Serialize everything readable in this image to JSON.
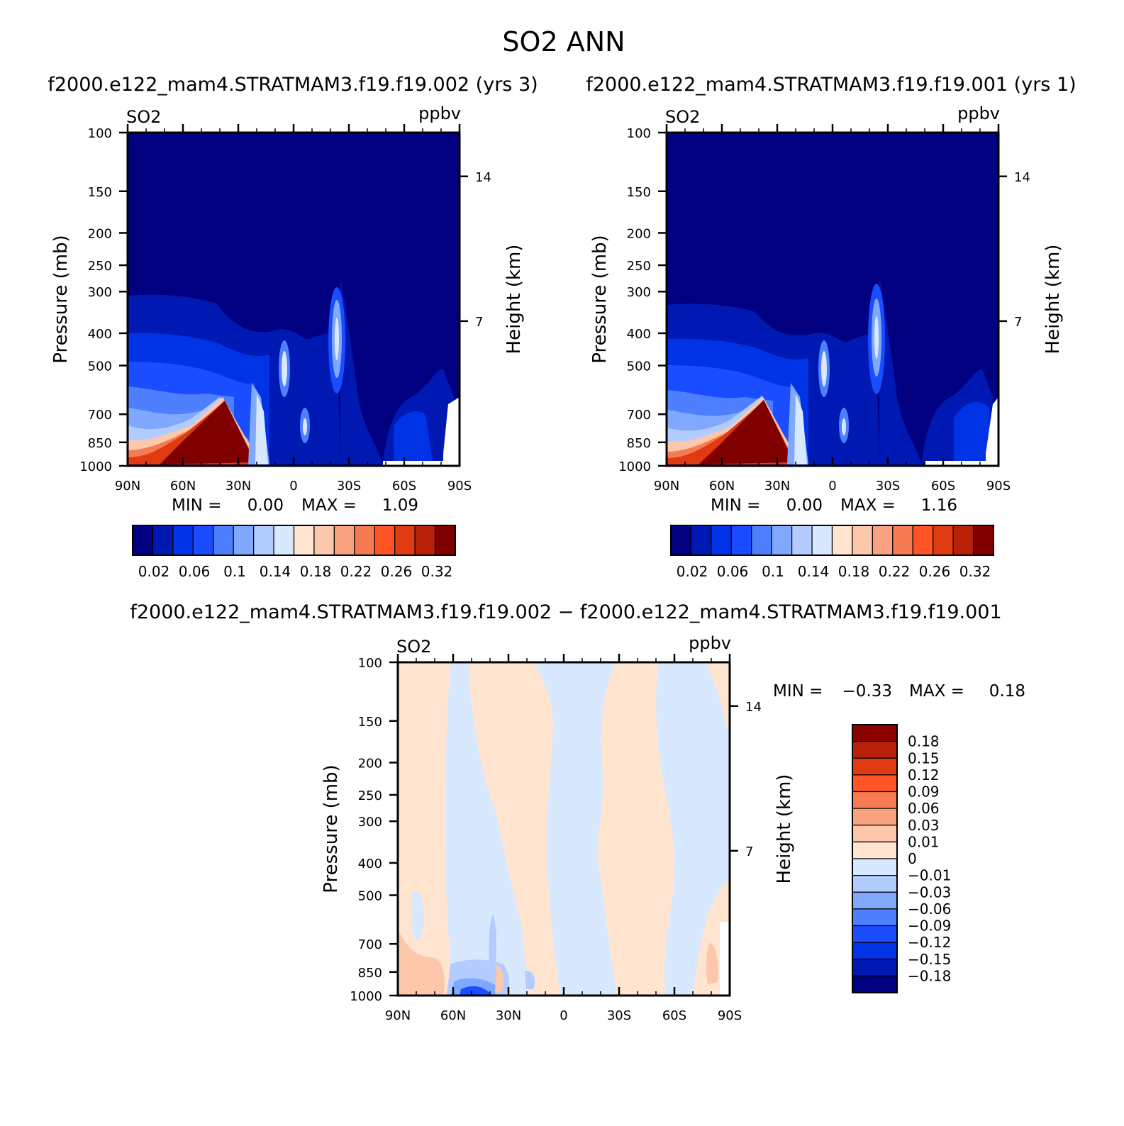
{
  "title": "SO2  ANN",
  "panels": [
    {
      "header": "f2000.e122_mam4.STRATMAM3.f19.f19.002  (yrs  3)",
      "var_label": "SO2",
      "unit_label": "ppbv",
      "ylabel_left": "Pressure  (mb)",
      "ylabel_right": "Height  (km)",
      "minmax": {
        "min_label": "MIN  =",
        "min_value": "0.00",
        "max_label": "MAX  =",
        "max_value": "1.09"
      }
    },
    {
      "header": "f2000.e122_mam4.STRATMAM3.f19.f19.001  (yrs  1)",
      "var_label": "SO2",
      "unit_label": "ppbv",
      "ylabel_left": "Pressure  (mb)",
      "ylabel_right": "Height  (km)",
      "minmax": {
        "min_label": "MIN  =",
        "min_value": "0.00",
        "max_label": "MAX  =",
        "max_value": "1.16"
      }
    },
    {
      "header": "f2000.e122_mam4.STRATMAM3.f19.f19.002  −  f2000.e122_mam4.STRATMAM3.f19.f19.001",
      "var_label": "SO2",
      "unit_label": "ppbv",
      "ylabel_left": "Pressure  (mb)",
      "ylabel_right": "Height  (km)",
      "minmax": {
        "min_label": "MIN  =",
        "min_value": "−0.33",
        "max_label": "MAX  =",
        "max_value": "0.18"
      }
    }
  ],
  "colorbars": {
    "field": {
      "colors": [
        "#000080",
        "#0019b3",
        "#0032e6",
        "#1a4dff",
        "#4d7fff",
        "#80a8ff",
        "#b3ccff",
        "#d8e9ff",
        "#ffe5d0",
        "#fcc7aa",
        "#f9a27f",
        "#f77b52",
        "#ff5526",
        "#e03a10",
        "#b82008",
        "#800000"
      ],
      "tick_labels": [
        "0.02",
        "0.06",
        "0.1",
        "0.14",
        "0.18",
        "0.22",
        "0.26",
        "0.32"
      ]
    },
    "diff": {
      "colors_top_to_bottom": [
        "#8b0000",
        "#b82008",
        "#e03a10",
        "#ff5526",
        "#f77b52",
        "#f9a27f",
        "#fcc7aa",
        "#ffe5d0",
        "#d8e9ff",
        "#b3ccff",
        "#80a8ff",
        "#4d7fff",
        "#1a4dff",
        "#0032e6",
        "#0019b3",
        "#000080"
      ],
      "tick_labels": [
        "0.18",
        "0.15",
        "0.12",
        "0.09",
        "0.06",
        "0.03",
        "0.01",
        "0",
        "−0.01",
        "−0.03",
        "−0.06",
        "−0.09",
        "−0.12",
        "−0.15",
        "−0.18"
      ]
    }
  },
  "chart_data": [
    {
      "type": "heatmap",
      "title": "f2000.e122_mam4.STRATMAM3.f19.f19.002  (yrs  3)",
      "xlabel": "",
      "ylabel": "Pressure  (mb)",
      "y2label": "Height  (km)",
      "x_ticks": [
        "90N",
        "60N",
        "30N",
        "0",
        "30S",
        "60S",
        "90S"
      ],
      "y_ticks": [
        "100",
        "150",
        "200",
        "250",
        "300",
        "400",
        "500",
        "700",
        "850",
        "1000"
      ],
      "y2_ticks": [
        "14",
        "7"
      ],
      "y_scale": "log",
      "ylim": [
        1000,
        100
      ],
      "xlim": [
        90,
        -90
      ],
      "min": 0.0,
      "max": 1.09,
      "unit": "ppbv",
      "contour_levels": [
        0.02,
        0.04,
        0.06,
        0.08,
        0.1,
        0.12,
        0.14,
        0.16,
        0.18,
        0.2,
        0.22,
        0.24,
        0.26,
        0.28,
        0.32
      ]
    },
    {
      "type": "heatmap",
      "title": "f2000.e122_mam4.STRATMAM3.f19.f19.001  (yrs  1)",
      "xlabel": "",
      "ylabel": "Pressure  (mb)",
      "y2label": "Height  (km)",
      "x_ticks": [
        "90N",
        "60N",
        "30N",
        "0",
        "30S",
        "60S",
        "90S"
      ],
      "y_ticks": [
        "100",
        "150",
        "200",
        "250",
        "300",
        "400",
        "500",
        "700",
        "850",
        "1000"
      ],
      "y2_ticks": [
        "14",
        "7"
      ],
      "y_scale": "log",
      "ylim": [
        1000,
        100
      ],
      "xlim": [
        90,
        -90
      ],
      "min": 0.0,
      "max": 1.16,
      "unit": "ppbv",
      "contour_levels": [
        0.02,
        0.04,
        0.06,
        0.08,
        0.1,
        0.12,
        0.14,
        0.16,
        0.18,
        0.2,
        0.22,
        0.24,
        0.26,
        0.28,
        0.32
      ]
    },
    {
      "type": "heatmap",
      "title": "f2000.e122_mam4.STRATMAM3.f19.f19.002  −  f2000.e122_mam4.STRATMAM3.f19.f19.001",
      "xlabel": "",
      "ylabel": "Pressure  (mb)",
      "y2label": "Height  (km)",
      "x_ticks": [
        "90N",
        "60N",
        "30N",
        "0",
        "30S",
        "60S",
        "90S"
      ],
      "y_ticks": [
        "100",
        "150",
        "200",
        "250",
        "300",
        "400",
        "500",
        "700",
        "850",
        "1000"
      ],
      "y2_ticks": [
        "14",
        "7"
      ],
      "y_scale": "log",
      "ylim": [
        1000,
        100
      ],
      "xlim": [
        90,
        -90
      ],
      "min": -0.33,
      "max": 0.18,
      "unit": "ppbv",
      "contour_levels": [
        -0.18,
        -0.15,
        -0.12,
        -0.09,
        -0.06,
        -0.03,
        -0.01,
        0,
        0.01,
        0.03,
        0.06,
        0.09,
        0.12,
        0.15,
        0.18
      ]
    }
  ]
}
